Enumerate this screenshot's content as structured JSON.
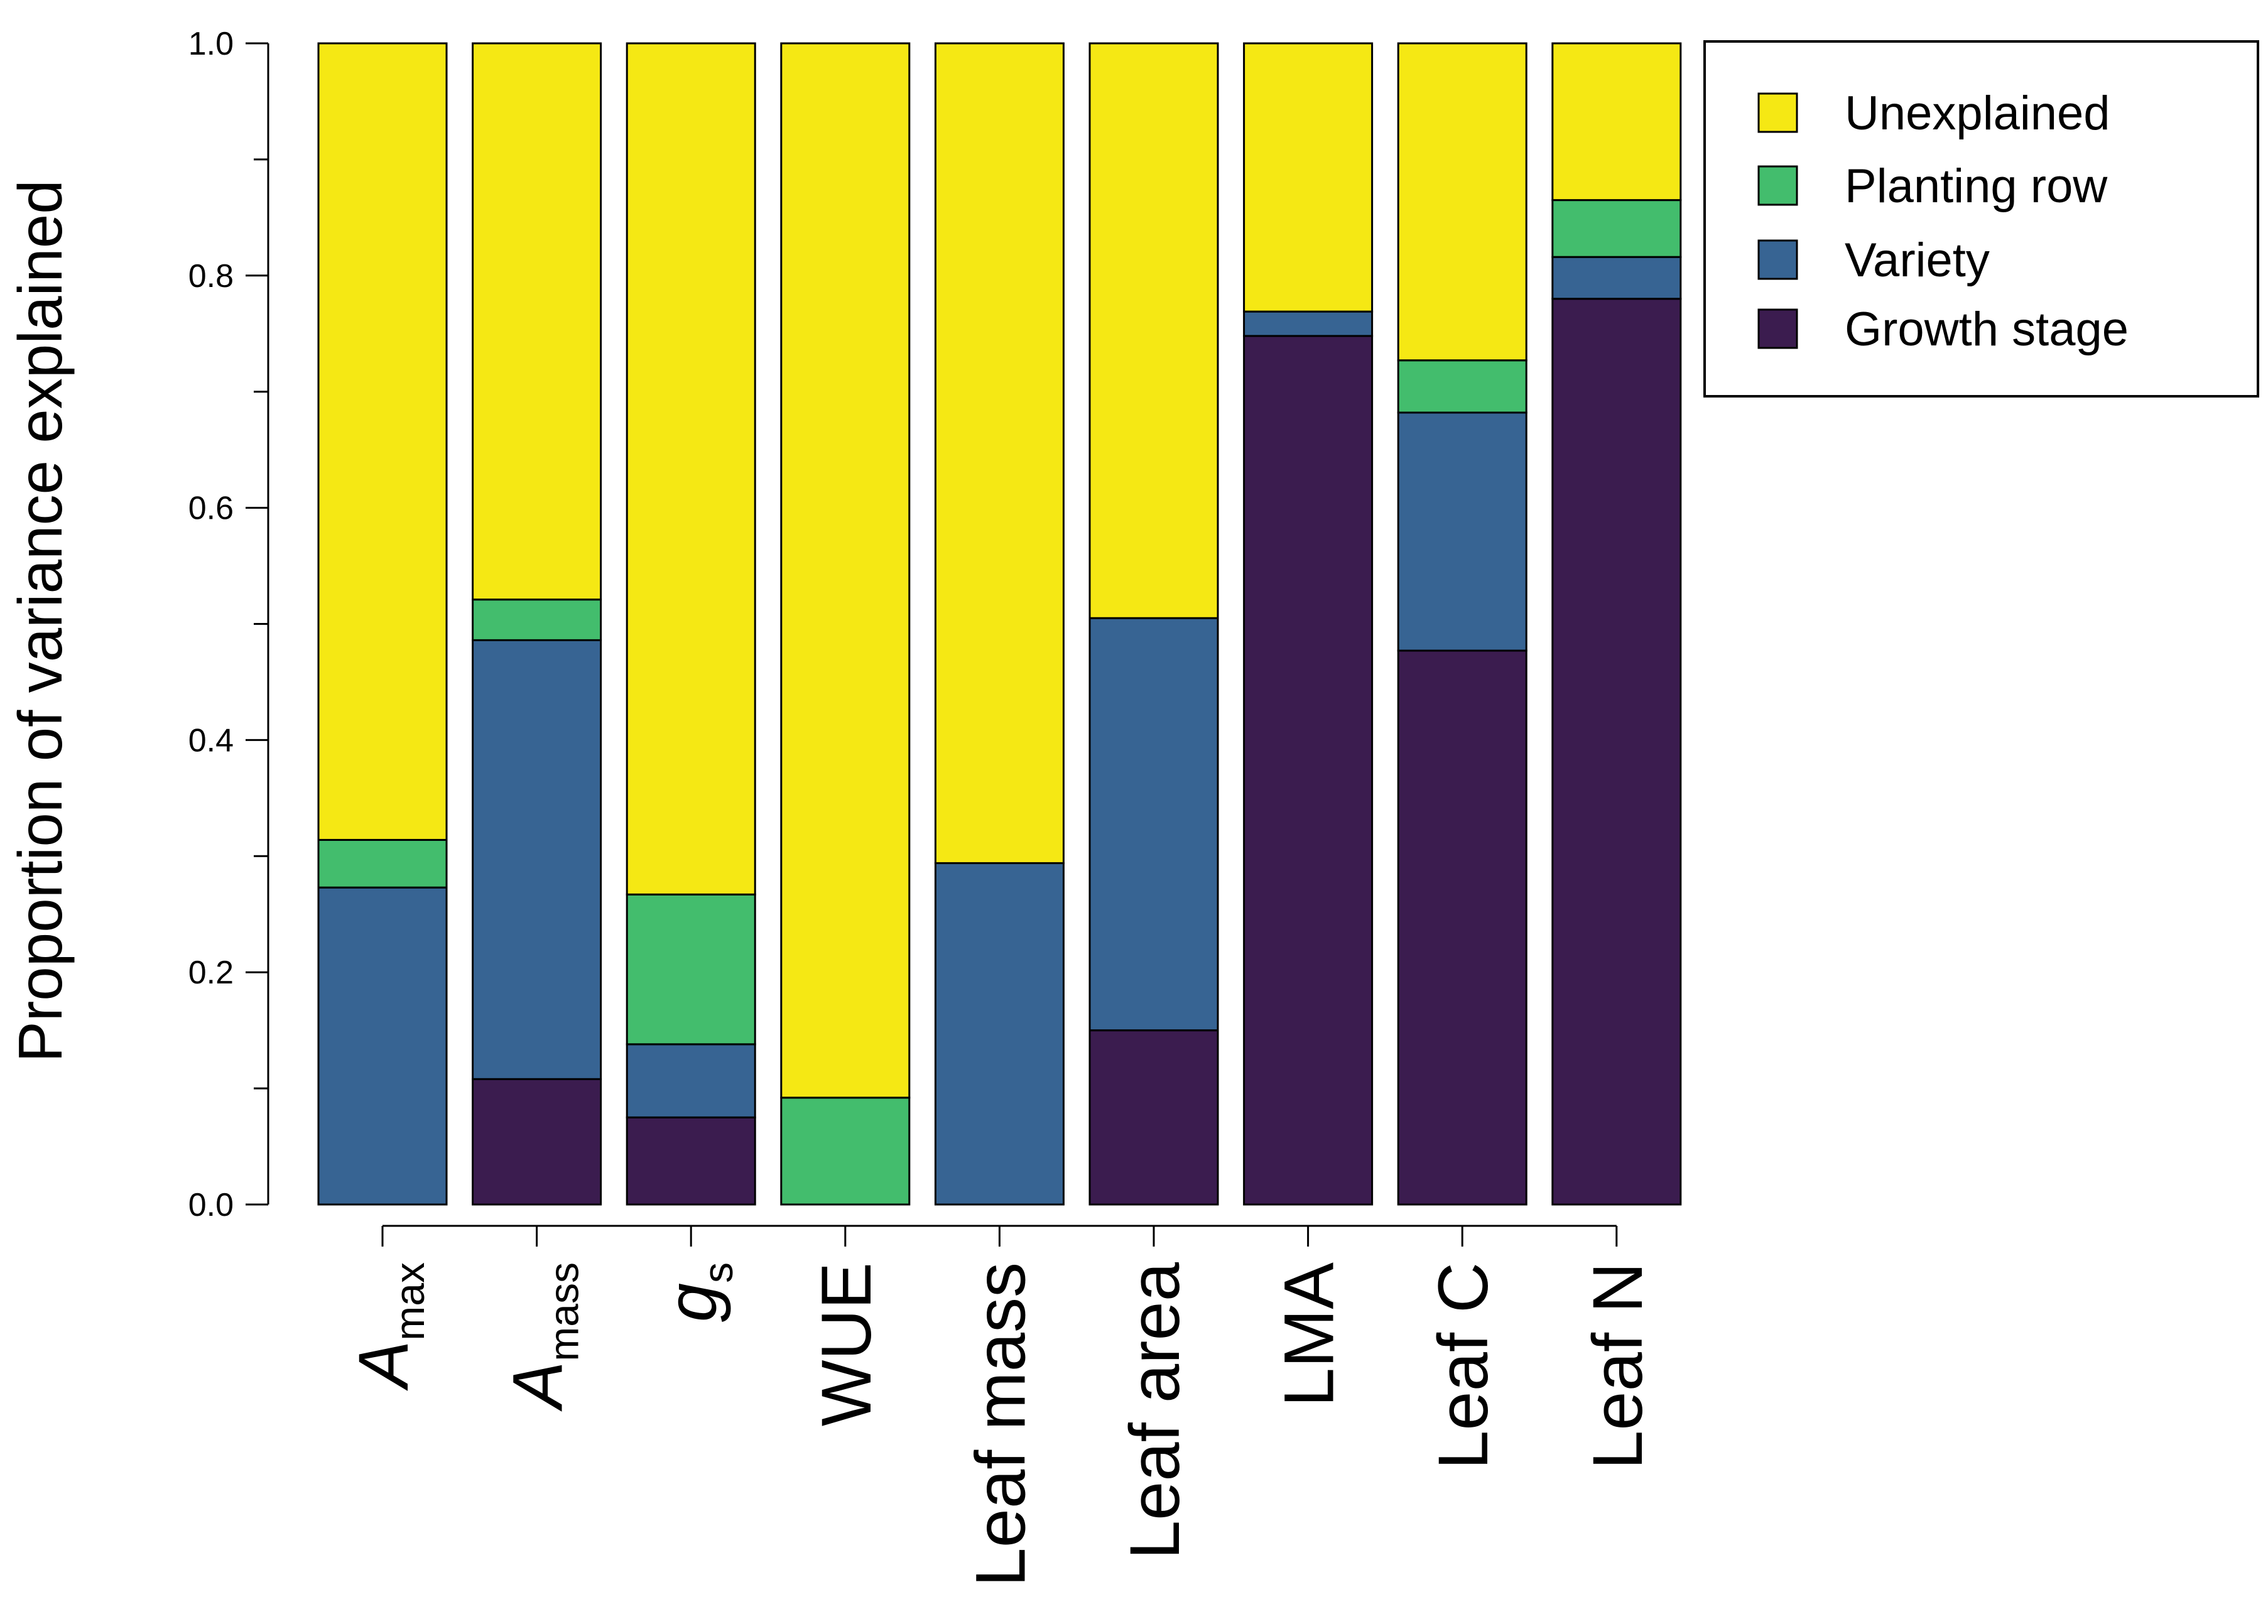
{
  "chart_data": {
    "type": "bar",
    "stacked": true,
    "ylabel": "Proportion of variance explained",
    "ylim": [
      0,
      1
    ],
    "yticks": [
      "0.0",
      "0.2",
      "0.4",
      "0.6",
      "0.8",
      "1.0"
    ],
    "legend_position": "top-right",
    "categories": [
      {
        "base": "A",
        "sub": "max",
        "italic": true
      },
      {
        "base": "A",
        "sub": "mass",
        "italic": true
      },
      {
        "base": "g",
        "sub": "s",
        "italic": true
      },
      {
        "base": "WUE",
        "sub": "",
        "italic": false
      },
      {
        "base": "Leaf mass",
        "sub": "",
        "italic": false
      },
      {
        "base": "Leaf area",
        "sub": "",
        "italic": false
      },
      {
        "base": "LMA",
        "sub": "",
        "italic": false
      },
      {
        "base": "Leaf C",
        "sub": "",
        "italic": false
      },
      {
        "base": "Leaf N",
        "sub": "",
        "italic": false
      }
    ],
    "series": [
      {
        "name": "Growth stage",
        "color": "#3b1c4f",
        "values": [
          0.0,
          0.108,
          0.075,
          0.0,
          0.0,
          0.15,
          0.748,
          0.477,
          0.78
        ]
      },
      {
        "name": "Variety",
        "color": "#376493",
        "values": [
          0.273,
          0.378,
          0.063,
          0.0,
          0.294,
          0.355,
          0.021,
          0.205,
          0.036
        ]
      },
      {
        "name": "Planting row",
        "color": "#43bd6d",
        "values": [
          0.041,
          0.035,
          0.129,
          0.092,
          0.0,
          0.0,
          0.0,
          0.045,
          0.049
        ]
      },
      {
        "name": "Unexplained",
        "color": "#f5e814",
        "values": [
          0.686,
          0.479,
          0.733,
          0.908,
          0.706,
          0.495,
          0.231,
          0.273,
          0.135
        ]
      }
    ],
    "legend_order": [
      "Unexplained",
      "Planting row",
      "Variety",
      "Growth stage"
    ]
  }
}
